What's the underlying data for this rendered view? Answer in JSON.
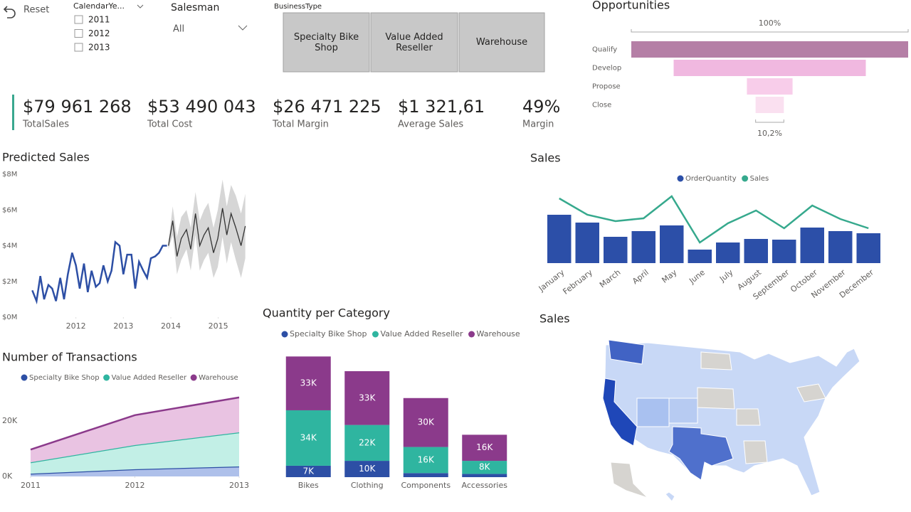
{
  "slicers": {
    "reset": "Reset",
    "calendar_year": {
      "title": "CalendarYe...",
      "options": [
        "2011",
        "2012",
        "2013"
      ]
    },
    "salesman": {
      "title": "Salesman",
      "selected": "All"
    },
    "business_type": {
      "title": "BusinessType",
      "options": [
        "Specialty Bike Shop",
        "Value Added Reseller",
        "Warehouse"
      ]
    }
  },
  "kpis": [
    {
      "value": "$79 961 268",
      "label": "TotalSales"
    },
    {
      "value": "$53 490 043",
      "label": "Total Cost"
    },
    {
      "value": "$26 471 225",
      "label": "Total Margin"
    },
    {
      "value": "$1 321,61",
      "label": "Average Sales"
    },
    {
      "value": "49%",
      "label": "Margin"
    }
  ],
  "chart_data": [
    {
      "type": "funnel",
      "title": "Opportunities",
      "categories": [
        "Qualify",
        "Develop",
        "Propose",
        "Close"
      ],
      "values": [
        100,
        69.4,
        16.5,
        10.2
      ],
      "value_labels": [
        "100%",
        null,
        null,
        "10,2%"
      ],
      "colors": [
        "#b57fa6",
        "#f0b8e0",
        "#f8cdea",
        "#fae0f0"
      ]
    },
    {
      "type": "line_forecast",
      "title": "Predicted Sales",
      "xlim": [
        2011,
        2015.65
      ],
      "xticks": [
        2012,
        2013,
        2014,
        2015
      ],
      "ylim": [
        0,
        8
      ],
      "yticks": [
        {
          "value": 0,
          "label": "$0M"
        },
        {
          "value": 2,
          "label": "$2M"
        },
        {
          "value": 4,
          "label": "$4M"
        },
        {
          "value": 6,
          "label": "$6M"
        },
        {
          "value": 8,
          "label": "$8M"
        }
      ],
      "series": [
        {
          "color": "#2d4fa5",
          "x": [
            2011.08,
            2011.17,
            2011.25,
            2011.33,
            2011.42,
            2011.5,
            2011.58,
            2011.67,
            2011.75,
            2011.83,
            2011.92,
            2012.0,
            2012.08,
            2012.17,
            2012.25,
            2012.33,
            2012.42,
            2012.5,
            2012.58,
            2012.67,
            2012.75,
            2012.83,
            2012.92,
            2013.0,
            2013.08,
            2013.17,
            2013.25,
            2013.33,
            2013.42,
            2013.5,
            2013.58,
            2013.67,
            2013.75,
            2013.83,
            2013.92
          ],
          "values": [
            1.5,
            0.9,
            2.3,
            1.0,
            1.8,
            1.6,
            0.9,
            2.2,
            1.0,
            2.4,
            3.6,
            2.9,
            1.6,
            3.0,
            1.4,
            2.6,
            1.7,
            1.9,
            2.9,
            2.0,
            2.6,
            4.2,
            4.0,
            2.4,
            3.5,
            3.5,
            1.6,
            3.1,
            2.6,
            2.2,
            3.3,
            3.4,
            3.6,
            4.0,
            4.0
          ]
        },
        {
          "color": "#333333",
          "band_color": "#d6d6d6",
          "x": [
            2013.95,
            2014.04,
            2014.13,
            2014.22,
            2014.33,
            2014.42,
            2014.52,
            2014.61,
            2014.7,
            2014.79,
            2014.9,
            2014.99,
            2015.09,
            2015.18,
            2015.27,
            2015.37,
            2015.48,
            2015.57
          ],
          "values": [
            4.0,
            5.4,
            3.4,
            4.4,
            4.9,
            3.8,
            5.8,
            4.0,
            4.6,
            5.0,
            3.6,
            4.4,
            6.1,
            4.6,
            5.8,
            5.0,
            4.0,
            5.1
          ],
          "upper": [
            4.2,
            6.2,
            4.5,
            5.6,
            6.0,
            5.0,
            7.0,
            5.4,
            6.0,
            6.4,
            5.0,
            6.0,
            7.7,
            6.2,
            7.4,
            6.8,
            5.8,
            6.9
          ],
          "lower": [
            3.8,
            4.6,
            2.4,
            3.2,
            3.8,
            2.6,
            4.6,
            2.6,
            3.2,
            3.6,
            2.2,
            2.8,
            4.5,
            3.0,
            4.2,
            3.2,
            2.2,
            3.3
          ]
        }
      ]
    },
    {
      "type": "bar_line",
      "title": "Sales",
      "categories": [
        "January",
        "February",
        "March",
        "April",
        "May",
        "June",
        "July",
        "August",
        "September",
        "October",
        "November",
        "December"
      ],
      "ylim": [
        0,
        100
      ],
      "y2lim": [
        0,
        100
      ],
      "series": [
        {
          "name": "OrderQuantity",
          "type": "bar",
          "color": "#2c4fa8",
          "values": [
            68,
            57,
            37,
            45,
            53,
            19,
            29,
            34,
            33,
            50,
            45,
            42
          ]
        },
        {
          "name": "Sales",
          "type": "line",
          "axis": "y2",
          "color": "#36a98d",
          "values": [
            91,
            68,
            59,
            63,
            94,
            29,
            56,
            74,
            49,
            81,
            62,
            49
          ]
        }
      ]
    },
    {
      "type": "stacked_area",
      "title": "Number of Transactions",
      "x": [
        2011,
        2012,
        2013
      ],
      "xlim": [
        2011,
        2013
      ],
      "xticks": [
        2011,
        2012,
        2013
      ],
      "ylim": [
        0,
        30000
      ],
      "yticks": [
        {
          "value": 0,
          "label": "0K"
        },
        {
          "value": 20000,
          "label": "20K"
        }
      ],
      "series": [
        {
          "name": "Specialty Bike Shop",
          "color": "#2d4fa5",
          "fill": "#aec0ea",
          "values": [
            1000,
            2600,
            3600
          ]
        },
        {
          "name": "Value Added Reseller",
          "color": "#2fb5a0",
          "fill": "#c2efe6",
          "values": [
            4100,
            8700,
            12300
          ]
        },
        {
          "name": "Warehouse",
          "color": "#8b3a8b",
          "fill": "#e9c3e2",
          "values": [
            4600,
            10800,
            12600
          ]
        }
      ]
    },
    {
      "type": "stacked_bar",
      "title": "Quantity per Category",
      "categories": [
        "Bikes",
        "Clothing",
        "Components",
        "Accessories"
      ],
      "ylim": [
        0,
        75000
      ],
      "series": [
        {
          "name": "Specialty Bike Shop",
          "color": "#2d4fa5",
          "values": [
            7000,
            10000,
            2500,
            2000
          ],
          "value_labels": [
            "7K",
            "10K",
            null,
            null
          ]
        },
        {
          "name": "Value Added Reseller",
          "color": "#2fb5a0",
          "values": [
            34000,
            22000,
            16000,
            8000
          ],
          "value_labels": [
            "34K",
            "22K",
            "16K",
            "8K"
          ]
        },
        {
          "name": "Warehouse",
          "color": "#8b3a8b",
          "values": [
            33000,
            33000,
            30000,
            16000
          ],
          "value_labels": [
            "33K",
            "33K",
            "30K",
            "16K"
          ]
        }
      ]
    },
    {
      "type": "map",
      "title": "Sales"
    }
  ]
}
